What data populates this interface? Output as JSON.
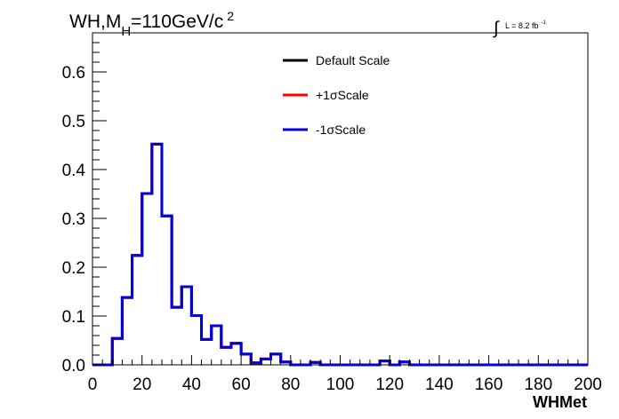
{
  "chart_data": {
    "type": "line",
    "title": "WH,M",
    "title_sub": "H",
    "title_rest": "=110GeV/c",
    "title_sup": "2",
    "lumi": {
      "integral": "∫",
      "text": "L = 8.2 fb",
      "sup": "-1"
    },
    "xlabel": "WHMet",
    "ylabel": "",
    "xlim": [
      0,
      200
    ],
    "ylim": [
      0,
      0.68
    ],
    "xticks": [
      0,
      20,
      40,
      60,
      80,
      100,
      120,
      140,
      160,
      180,
      200
    ],
    "yticks": [
      0.0,
      0.1,
      0.2,
      0.3,
      0.4,
      0.5,
      0.6
    ],
    "ytick_labels": [
      "0.0",
      "0.1",
      "0.2",
      "0.3",
      "0.4",
      "0.5",
      "0.6"
    ],
    "grid": false,
    "legend_position": "top-center",
    "bin_width": 4,
    "bin_edges_start": 0,
    "series": [
      {
        "name": "Default Scale",
        "color": "#000000",
        "values": [
          0,
          0,
          0.054,
          0.138,
          0.224,
          0.351,
          0.452,
          0.305,
          0.118,
          0.16,
          0.101,
          0.052,
          0.08,
          0.036,
          0.044,
          0.022,
          0.004,
          0.012,
          0.022,
          0.006,
          0,
          0,
          0.005,
          0,
          0,
          0,
          0,
          0,
          0,
          0.008,
          0,
          0.006,
          0,
          0,
          0,
          0,
          0,
          0,
          0,
          0,
          0,
          0,
          0,
          0,
          0,
          0,
          0,
          0,
          0,
          0
        ]
      },
      {
        "name": "+1σScale",
        "color": "#ff0000",
        "values": [
          0,
          0,
          0.054,
          0.138,
          0.224,
          0.351,
          0.452,
          0.305,
          0.118,
          0.16,
          0.101,
          0.052,
          0.08,
          0.036,
          0.044,
          0.022,
          0.004,
          0.012,
          0.022,
          0.006,
          0,
          0,
          0.005,
          0,
          0,
          0,
          0,
          0,
          0,
          0.008,
          0,
          0.006,
          0,
          0,
          0,
          0,
          0,
          0,
          0,
          0,
          0,
          0,
          0,
          0,
          0,
          0,
          0,
          0,
          0,
          0
        ]
      },
      {
        "name": "-1σScale",
        "color": "#0000dd",
        "values": [
          0,
          0,
          0.054,
          0.138,
          0.224,
          0.351,
          0.452,
          0.305,
          0.118,
          0.16,
          0.101,
          0.052,
          0.08,
          0.036,
          0.044,
          0.022,
          0.004,
          0.012,
          0.022,
          0.006,
          0,
          0,
          0.005,
          0,
          0,
          0,
          0,
          0,
          0,
          0.008,
          0,
          0.006,
          0,
          0,
          0,
          0,
          0,
          0,
          0,
          0,
          0,
          0,
          0,
          0,
          0,
          0,
          0,
          0,
          0,
          0
        ]
      }
    ]
  }
}
